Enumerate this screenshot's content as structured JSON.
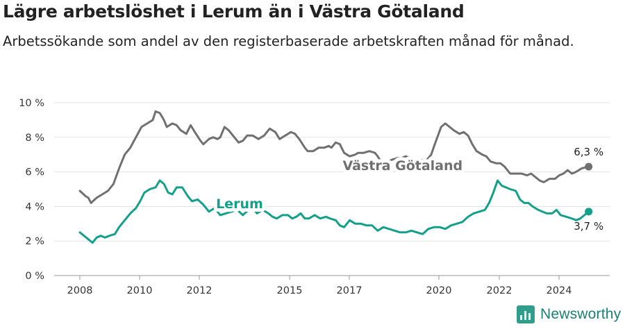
{
  "header": {
    "title": "Lägre arbetslöshet i Lerum än i Västra Götaland",
    "subtitle": "Arbetssökande som andel av den registerbaserade arbetskraften månad för månad."
  },
  "brand": {
    "name": "Newsworthy",
    "icon": "bar-chart-icon",
    "color": "#2f9e8a"
  },
  "chart_data": {
    "type": "line",
    "title": "Lägre arbetslöshet i Lerum än i Västra Götaland",
    "subtitle": "Arbetssökande som andel av den registerbaserade arbetskraften månad för månad.",
    "xlabel": "",
    "ylabel": "",
    "xlim": [
      2007.7,
      2025.6
    ],
    "ylim": [
      0,
      10
    ],
    "grid": true,
    "legend": "inline",
    "x_ticks": [
      2008,
      2010,
      2012,
      2015,
      2017,
      2020,
      2022,
      2024
    ],
    "x_tick_labels": [
      "2008",
      "2010",
      "2012",
      "2015",
      "2017",
      "2020",
      "2022",
      "2024"
    ],
    "y_ticks": [
      0,
      2,
      4,
      6,
      8,
      10
    ],
    "y_tick_labels": [
      "0 %",
      "2 %",
      "4 %",
      "6 %",
      "8 %",
      "10 %"
    ],
    "series": [
      {
        "name": "Västra Götaland",
        "color": "#707070",
        "end_label": "6,3 %",
        "points": [
          [
            2008.0,
            4.9
          ],
          [
            2008.2,
            4.6
          ],
          [
            2008.3,
            4.5
          ],
          [
            2008.4,
            4.2
          ],
          [
            2008.6,
            4.5
          ],
          [
            2008.8,
            4.7
          ],
          [
            2009.0,
            4.9
          ],
          [
            2009.2,
            5.3
          ],
          [
            2009.4,
            6.2
          ],
          [
            2009.6,
            7.0
          ],
          [
            2009.8,
            7.4
          ],
          [
            2010.0,
            8.0
          ],
          [
            2010.2,
            8.6
          ],
          [
            2010.4,
            8.8
          ],
          [
            2010.6,
            9.0
          ],
          [
            2010.7,
            9.5
          ],
          [
            2010.85,
            9.4
          ],
          [
            2011.0,
            9.0
          ],
          [
            2011.1,
            8.6
          ],
          [
            2011.3,
            8.8
          ],
          [
            2011.45,
            8.7
          ],
          [
            2011.6,
            8.4
          ],
          [
            2011.8,
            8.2
          ],
          [
            2011.95,
            8.7
          ],
          [
            2012.1,
            8.3
          ],
          [
            2012.3,
            7.8
          ],
          [
            2012.4,
            7.6
          ],
          [
            2012.6,
            7.9
          ],
          [
            2012.75,
            8.0
          ],
          [
            2012.9,
            7.9
          ],
          [
            2013.0,
            8.0
          ],
          [
            2013.15,
            8.6
          ],
          [
            2013.3,
            8.4
          ],
          [
            2013.5,
            8.0
          ],
          [
            2013.65,
            7.7
          ],
          [
            2013.8,
            7.8
          ],
          [
            2013.95,
            8.1
          ],
          [
            2014.15,
            8.1
          ],
          [
            2014.35,
            7.9
          ],
          [
            2014.55,
            8.1
          ],
          [
            2014.75,
            8.5
          ],
          [
            2014.95,
            8.3
          ],
          [
            2015.1,
            7.9
          ],
          [
            2015.3,
            8.1
          ],
          [
            2015.5,
            8.3
          ],
          [
            2015.65,
            8.2
          ],
          [
            2015.8,
            7.9
          ],
          [
            2016.0,
            7.4
          ],
          [
            2016.1,
            7.2
          ],
          [
            2016.3,
            7.2
          ],
          [
            2016.5,
            7.4
          ],
          [
            2016.7,
            7.4
          ],
          [
            2016.85,
            7.5
          ],
          [
            2016.95,
            7.4
          ],
          [
            2017.1,
            7.7
          ],
          [
            2017.25,
            7.6
          ],
          [
            2017.4,
            7.1
          ],
          [
            2017.6,
            6.9
          ],
          [
            2017.8,
            7.0
          ],
          [
            2017.9,
            7.1
          ],
          [
            2018.1,
            7.1
          ],
          [
            2018.3,
            7.2
          ],
          [
            2018.5,
            7.1
          ],
          [
            2018.6,
            6.9
          ],
          [
            2018.75,
            6.5
          ],
          [
            2018.95,
            6.6
          ],
          [
            2019.1,
            6.7
          ],
          [
            2019.3,
            6.8
          ],
          [
            2019.45,
            6.8
          ],
          [
            2019.6,
            6.9
          ],
          [
            2019.75,
            6.8
          ],
          [
            2019.9,
            6.6
          ],
          [
            2020.0,
            6.6
          ],
          [
            2020.15,
            6.7
          ],
          [
            2020.3,
            6.6
          ],
          [
            2020.5,
            7.0
          ],
          [
            2020.65,
            7.7
          ],
          [
            2020.85,
            8.6
          ],
          [
            2021.0,
            8.8
          ],
          [
            2021.15,
            8.6
          ],
          [
            2021.3,
            8.4
          ],
          [
            2021.5,
            8.2
          ],
          [
            2021.65,
            8.3
          ],
          [
            2021.8,
            8.1
          ],
          [
            2021.95,
            7.6
          ],
          [
            2022.1,
            7.2
          ],
          [
            2022.3,
            7.0
          ],
          [
            2022.45,
            6.9
          ],
          [
            2022.6,
            6.6
          ],
          [
            2022.8,
            6.5
          ],
          [
            2022.95,
            6.5
          ],
          [
            2023.1,
            6.3
          ],
          [
            2023.3,
            5.9
          ],
          [
            2023.5,
            5.9
          ],
          [
            2023.7,
            5.9
          ],
          [
            2023.9,
            5.8
          ],
          [
            2024.05,
            5.9
          ],
          [
            2024.2,
            5.7
          ],
          [
            2024.35,
            5.5
          ],
          [
            2024.5,
            5.4
          ],
          [
            2024.7,
            5.6
          ],
          [
            2024.9,
            5.6
          ],
          [
            2025.05,
            5.8
          ],
          [
            2025.2,
            5.9
          ],
          [
            2025.35,
            6.1
          ],
          [
            2025.5,
            5.9
          ],
          [
            2025.65,
            6.0
          ],
          [
            2025.85,
            6.2
          ],
          [
            2026.1,
            6.3
          ]
        ]
      },
      {
        "name": "Lerum",
        "color": "#12a08b",
        "end_label": "3,7 %",
        "points": [
          [
            2008.0,
            2.5
          ],
          [
            2008.15,
            2.3
          ],
          [
            2008.3,
            2.1
          ],
          [
            2008.45,
            1.9
          ],
          [
            2008.6,
            2.2
          ],
          [
            2008.75,
            2.3
          ],
          [
            2008.9,
            2.2
          ],
          [
            2009.05,
            2.3
          ],
          [
            2009.25,
            2.4
          ],
          [
            2009.4,
            2.8
          ],
          [
            2009.6,
            3.2
          ],
          [
            2009.8,
            3.6
          ],
          [
            2010.0,
            3.9
          ],
          [
            2010.15,
            4.3
          ],
          [
            2010.3,
            4.8
          ],
          [
            2010.5,
            5.0
          ],
          [
            2010.7,
            5.1
          ],
          [
            2010.85,
            5.5
          ],
          [
            2011.0,
            5.3
          ],
          [
            2011.15,
            4.8
          ],
          [
            2011.3,
            4.7
          ],
          [
            2011.45,
            5.1
          ],
          [
            2011.65,
            5.1
          ],
          [
            2011.85,
            4.6
          ],
          [
            2012.0,
            4.3
          ],
          [
            2012.2,
            4.4
          ],
          [
            2012.4,
            4.1
          ],
          [
            2012.6,
            3.7
          ],
          [
            2012.8,
            3.9
          ],
          [
            2013.0,
            3.5
          ],
          [
            2013.2,
            3.6
          ],
          [
            2013.4,
            3.7
          ],
          [
            2013.6,
            3.8
          ],
          [
            2013.8,
            3.5
          ],
          [
            2014.0,
            3.8
          ],
          [
            2014.15,
            3.9
          ],
          [
            2014.3,
            3.6
          ],
          [
            2014.5,
            3.8
          ],
          [
            2014.7,
            3.6
          ],
          [
            2014.85,
            3.4
          ],
          [
            2015.0,
            3.3
          ],
          [
            2015.2,
            3.5
          ],
          [
            2015.4,
            3.5
          ],
          [
            2015.55,
            3.3
          ],
          [
            2015.7,
            3.4
          ],
          [
            2015.85,
            3.6
          ],
          [
            2016.0,
            3.3
          ],
          [
            2016.15,
            3.3
          ],
          [
            2016.35,
            3.5
          ],
          [
            2016.55,
            3.3
          ],
          [
            2016.75,
            3.4
          ],
          [
            2016.9,
            3.3
          ],
          [
            2017.1,
            3.2
          ],
          [
            2017.25,
            2.9
          ],
          [
            2017.4,
            2.8
          ],
          [
            2017.6,
            3.2
          ],
          [
            2017.8,
            3.0
          ],
          [
            2018.0,
            3.0
          ],
          [
            2018.2,
            2.9
          ],
          [
            2018.4,
            2.9
          ],
          [
            2018.6,
            2.6
          ],
          [
            2018.8,
            2.8
          ],
          [
            2019.0,
            2.7
          ],
          [
            2019.2,
            2.6
          ],
          [
            2019.4,
            2.5
          ],
          [
            2019.6,
            2.5
          ],
          [
            2019.8,
            2.6
          ],
          [
            2020.0,
            2.5
          ],
          [
            2020.2,
            2.4
          ],
          [
            2020.4,
            2.7
          ],
          [
            2020.6,
            2.8
          ],
          [
            2020.8,
            2.8
          ],
          [
            2021.0,
            2.7
          ],
          [
            2021.2,
            2.9
          ],
          [
            2021.4,
            3.0
          ],
          [
            2021.6,
            3.1
          ],
          [
            2021.8,
            3.4
          ],
          [
            2022.0,
            3.6
          ],
          [
            2022.2,
            3.7
          ],
          [
            2022.4,
            3.8
          ],
          [
            2022.55,
            4.2
          ],
          [
            2022.7,
            4.8
          ],
          [
            2022.85,
            5.5
          ],
          [
            2023.0,
            5.2
          ],
          [
            2023.15,
            5.1
          ],
          [
            2023.3,
            5.0
          ],
          [
            2023.5,
            4.9
          ],
          [
            2023.65,
            4.4
          ],
          [
            2023.8,
            4.2
          ],
          [
            2023.95,
            4.2
          ],
          [
            2024.1,
            4.0
          ],
          [
            2024.3,
            3.8
          ],
          [
            2024.45,
            3.7
          ],
          [
            2024.6,
            3.6
          ],
          [
            2024.8,
            3.6
          ],
          [
            2024.95,
            3.8
          ],
          [
            2025.1,
            3.5
          ],
          [
            2025.3,
            3.4
          ],
          [
            2025.5,
            3.3
          ],
          [
            2025.65,
            3.2
          ],
          [
            2025.8,
            3.3
          ],
          [
            2025.95,
            3.5
          ],
          [
            2026.1,
            3.7
          ]
        ]
      }
    ],
    "labels": [
      {
        "text": "Västra Götaland",
        "x": 2017.35,
        "y": 6.1,
        "series": 0
      },
      {
        "text": "Lerum",
        "x": 2012.85,
        "y": 3.9,
        "series": 1
      }
    ]
  }
}
